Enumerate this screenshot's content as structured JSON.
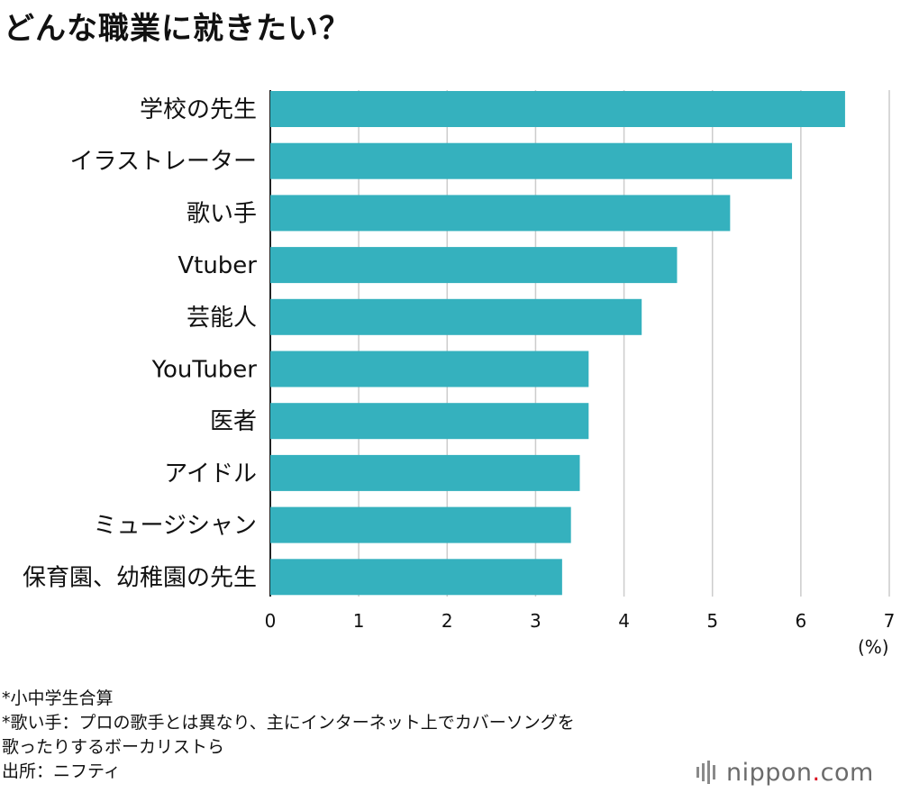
{
  "title": "どんな職業に就きたい？",
  "unit_label": "(%)",
  "notes": [
    "*小中学生合算",
    "*歌い手：プロの歌手とは異なり、主にインターネット上でカバーソングを",
    "歌ったりするボーカリストら",
    "出所：ニフティ"
  ],
  "brand": {
    "name": "nippon",
    "dot": ".",
    "suffix": "com",
    "logo_icon": "nippon-logo-bars-icon"
  },
  "chart_data": {
    "type": "bar",
    "orientation": "horizontal",
    "categories": [
      "学校の先生",
      "イラストレーター",
      "歌い手",
      "Vtuber",
      "芸能人",
      "YouTuber",
      "医者",
      "アイドル",
      "ミュージシャン",
      "保育園、幼稚園の先生"
    ],
    "values": [
      6.5,
      5.9,
      5.2,
      4.6,
      4.2,
      3.6,
      3.6,
      3.5,
      3.4,
      3.3
    ],
    "xlim": [
      0,
      7
    ],
    "xticks": [
      "0",
      "1",
      "2",
      "3",
      "4",
      "5",
      "6",
      "7"
    ],
    "grid": true,
    "bar_color": "#35b1be",
    "grid_color": "#cccccc"
  }
}
